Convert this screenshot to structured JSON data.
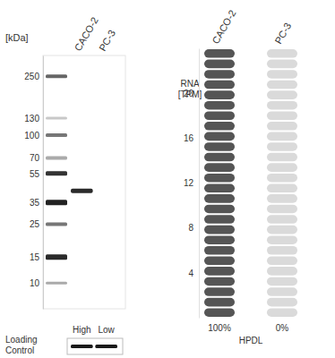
{
  "chart_data": [
    {
      "type": "blot",
      "y_label": "[kDa]",
      "lanes": [
        "CACO-2",
        "PC-3"
      ],
      "log": "y",
      "ylim": [
        6.7,
        345
      ],
      "yticks": [
        250,
        130,
        100,
        70,
        55,
        35,
        25,
        15,
        10
      ],
      "bands": [
        {
          "lane": "CACO-2",
          "value": 42
        }
      ],
      "lane_levels": [
        "High",
        "Low"
      ],
      "loading_control": [
        "Loading",
        "Control"
      ]
    },
    {
      "type": "bar",
      "y_label": [
        "RNA",
        "[TPM]"
      ],
      "categories": [
        "CACO-2",
        "PC-3"
      ],
      "values": [
        24,
        0
      ],
      "ylim": [
        0,
        24
      ],
      "yticks": [
        4,
        8,
        12,
        16,
        20
      ],
      "colors": [
        "#555555",
        "#d9d9d9"
      ],
      "share": [
        {
          "value": 100,
          "label": "100%"
        },
        {
          "value": 0,
          "label": "0%"
        }
      ],
      "x_label": "HPDL"
    }
  ]
}
